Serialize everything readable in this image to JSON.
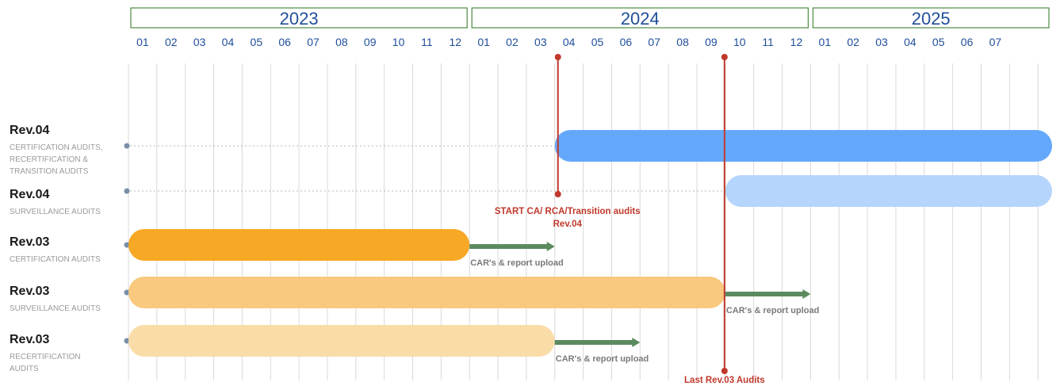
{
  "chart_data": {
    "type": "gantt",
    "years": [
      {
        "label": "2023",
        "months": [
          "01",
          "02",
          "03",
          "04",
          "05",
          "06",
          "07",
          "08",
          "09",
          "10",
          "11",
          "12"
        ]
      },
      {
        "label": "2024",
        "months": [
          "01",
          "02",
          "03",
          "04",
          "05",
          "06",
          "07",
          "08",
          "09",
          "10",
          "11",
          "12"
        ]
      },
      {
        "label": "2025",
        "months": [
          "01",
          "02",
          "03",
          "04",
          "05",
          "06",
          "07"
        ]
      }
    ],
    "rows": [
      {
        "title": "Rev.04",
        "subtitle_lines": [
          "CERTIFICATION AUDITS,",
          "RECERTIFICATION &",
          "TRANSITION AUDITS"
        ],
        "bar": {
          "start": "2024-04",
          "end": "2025-10",
          "color": "#64a8fb"
        }
      },
      {
        "title": "Rev.04",
        "subtitle_lines": [
          "SURVEILLANCE AUDITS"
        ],
        "bar": {
          "start": "2024-10",
          "end": "2025-10",
          "color": "#b5d5fd"
        }
      },
      {
        "title": "Rev.03",
        "subtitle_lines": [
          "CERTIFICATION AUDITS"
        ],
        "bar": {
          "start": "2023-01",
          "end": "2024-01",
          "color": "#f7a824"
        },
        "arrow": {
          "end": "2024-04",
          "label": "CAR's & report upload"
        }
      },
      {
        "title": "Rev.03",
        "subtitle_lines": [
          "SURVEILLANCE AUDITS"
        ],
        "bar": {
          "start": "2023-01",
          "end": "2024-10",
          "color": "#f8c97e"
        },
        "arrow": {
          "end": "2025-01",
          "label": "CAR's & report upload"
        }
      },
      {
        "title": "Rev.03",
        "subtitle_lines": [
          "RECERTIFICATION",
          "AUDITS"
        ],
        "bar": {
          "start": "2023-01",
          "end": "2024-04",
          "color": "#fadca8"
        },
        "arrow": {
          "end": "2024-07",
          "label": "CAR's & report upload"
        }
      }
    ],
    "milestones": [
      {
        "date": "2024-04",
        "label_lines": [
          "START CA/ RCA/Transition audits",
          "Rev.04"
        ],
        "color": "#c0392b"
      },
      {
        "date": "2024-10",
        "label_lines": [
          "Last Rev.03 Audits"
        ],
        "color": "#c0392b"
      }
    ],
    "colors": {
      "year_border": "#4e8a41",
      "month_text": "#1f4e9a",
      "arrow": "#5a8a5e",
      "grid": "#d9d9d9",
      "dot": "#7a8ea8"
    }
  }
}
